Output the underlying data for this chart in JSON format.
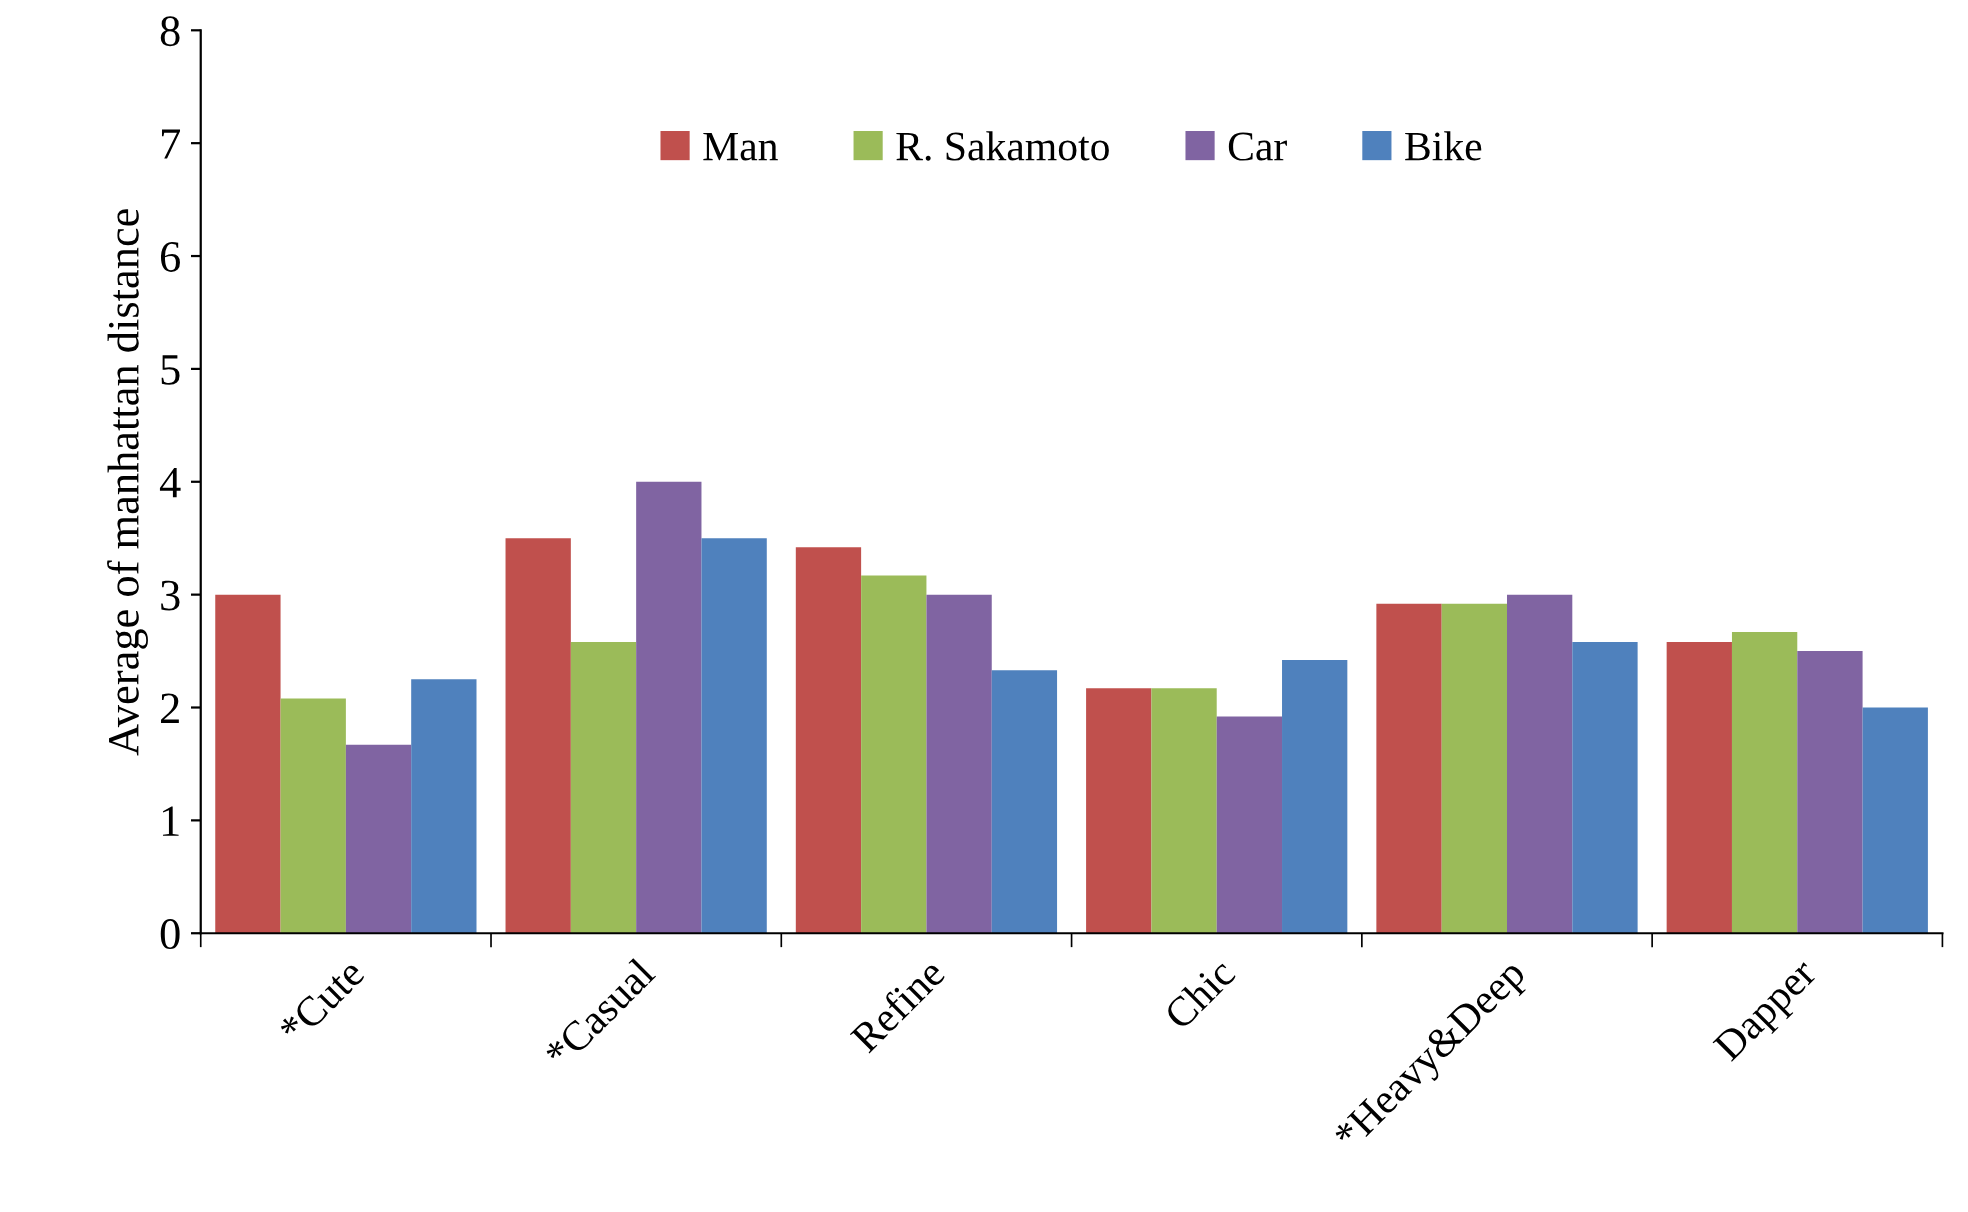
{
  "chart_data": {
    "type": "bar",
    "ylabel": "Average of manhattan distance",
    "categories": [
      "*Cute",
      "*Casual",
      "Refine",
      "Chic",
      "*Heavy&Deep",
      "Dapper"
    ],
    "series": [
      {
        "name": "Man",
        "color": "#c0504d",
        "values": [
          3.0,
          3.5,
          3.42,
          2.17,
          2.92,
          2.58
        ]
      },
      {
        "name": "R. Sakamoto",
        "color": "#9bbb59",
        "values": [
          2.08,
          2.58,
          3.17,
          2.17,
          2.92,
          2.67
        ]
      },
      {
        "name": "Car",
        "color": "#8064a2",
        "values": [
          1.67,
          4.0,
          3.0,
          1.92,
          3.0,
          2.5
        ]
      },
      {
        "name": "Bike",
        "color": "#4f81bd",
        "values": [
          2.25,
          3.5,
          2.33,
          2.42,
          2.58,
          2.0
        ]
      }
    ],
    "ylim": [
      0,
      8
    ],
    "yticks": [
      0,
      1,
      2,
      3,
      4,
      5,
      6,
      7,
      8
    ],
    "grid": false,
    "legend": "top"
  }
}
